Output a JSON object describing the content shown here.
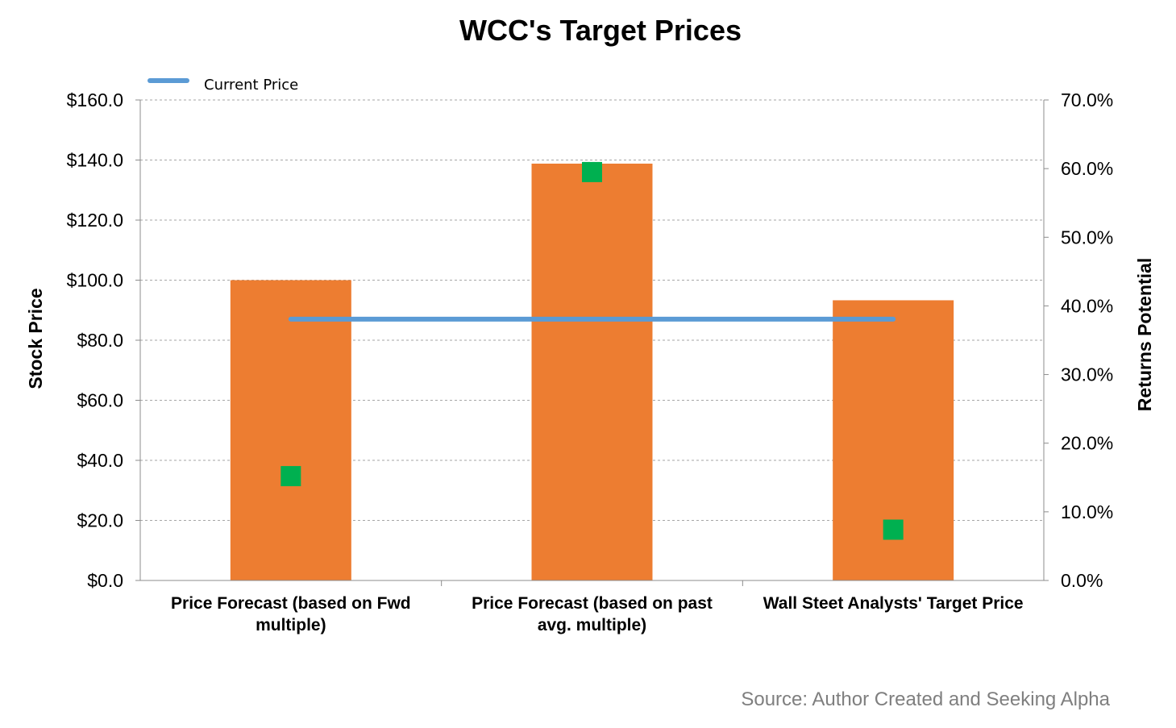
{
  "chart_data": {
    "type": "bar",
    "title": "WCC's Target Prices",
    "categories": [
      [
        "Price Forecast (based on Fwd",
        "multiple)"
      ],
      [
        "Price Forecast (based on past",
        "avg. multiple)"
      ],
      [
        "Wall Steet Analysts' Target Price"
      ]
    ],
    "series": [
      {
        "name": "",
        "type": "bar",
        "axis": "left",
        "values": [
          100.0,
          138.8,
          93.3
        ]
      },
      {
        "name": "Current Price",
        "type": "line",
        "axis": "left",
        "values": [
          87.0,
          87.0,
          87.0
        ]
      },
      {
        "name": "",
        "type": "scatter",
        "axis": "right",
        "values": [
          15.2,
          59.5,
          7.4
        ]
      }
    ],
    "ylabel": "Stock Price",
    "y2label": "Returns Potential",
    "ylim": [
      0,
      160
    ],
    "y2lim": [
      0,
      70
    ],
    "yticks": [
      "$0.0",
      "$20.0",
      "$40.0",
      "$60.0",
      "$80.0",
      "$100.0",
      "$120.0",
      "$140.0",
      "$160.0"
    ],
    "y2ticks": [
      "0.0%",
      "10.0%",
      "20.0%",
      "30.0%",
      "40.0%",
      "50.0%",
      "60.0%",
      "70.0%"
    ],
    "grid": true,
    "legend": "top-left",
    "colors": {
      "bar": "#ed7d31",
      "line": "#5b9bd5",
      "marker": "#00b050"
    }
  },
  "source": "Source: Author Created and Seeking Alpha"
}
